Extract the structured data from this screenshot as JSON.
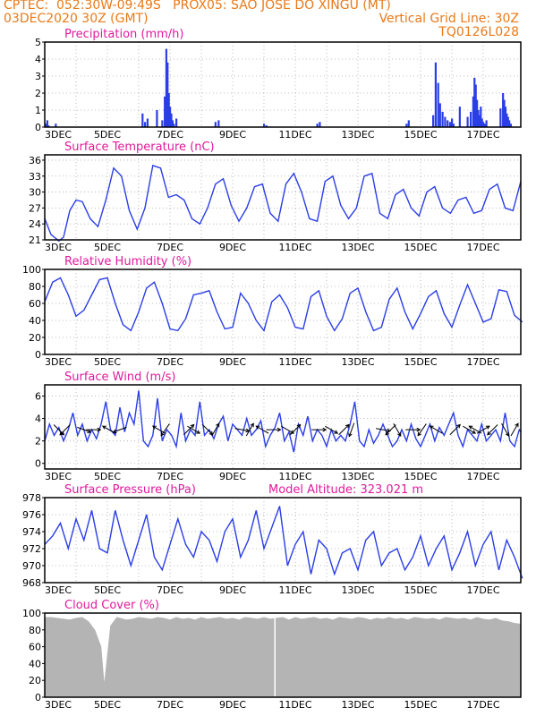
{
  "header": {
    "line1": "CPTEC:  052:30W-09:49S   PROX05: SAO JOSE DO XINGU (MT)",
    "line2_left": "03DEC2020 30Z (GMT)",
    "line2_right": "Vertical Grid Line: 30Z",
    "line3_right": "TQ0126L028",
    "model_altitude": "Model Altitude: 323.021 m"
  },
  "colors": {
    "header": "#e87a1a",
    "panel_title": "#e01a9c",
    "series_line": "#2b3ee6",
    "bar": "#2b3ee6",
    "cloud": "#b4b4b4",
    "grid": "#aaaaaa",
    "wind_arrow": "#000000"
  },
  "date_labels": [
    "3DEC",
    "5DEC",
    "7DEC",
    "9DEC",
    "11DEC",
    "13DEC",
    "15DEC",
    "17DEC"
  ],
  "chart_data": [
    {
      "id": "precipitation",
      "type": "bar",
      "title": "Precipitation (mm/h)",
      "x_unit": "days since 3DEC",
      "ylim": [
        0,
        5
      ],
      "yticks": [
        "0",
        "1",
        "2",
        "3",
        "4",
        "5"
      ],
      "grid": true,
      "x": [
        0.04,
        0.08,
        0.12,
        0.35,
        3.12,
        3.2,
        3.28,
        3.58,
        3.75,
        3.83,
        3.88,
        3.92,
        3.96,
        4.0,
        4.04,
        4.08,
        4.12,
        4.2,
        5.45,
        5.55,
        7.0,
        7.08,
        8.7,
        8.78,
        11.55,
        11.62,
        12.4,
        12.48,
        12.56,
        12.62,
        12.7,
        12.78,
        12.86,
        12.94,
        13.0,
        13.05,
        13.25,
        13.5,
        13.6,
        13.68,
        13.72,
        13.76,
        13.8,
        13.84,
        13.88,
        13.92,
        13.96,
        14.0,
        14.04,
        14.1,
        14.55,
        14.63,
        14.67,
        14.71,
        14.75,
        14.79,
        14.83,
        14.88
      ],
      "values": [
        0.2,
        0.4,
        0.1,
        0.2,
        0.8,
        0.3,
        0.5,
        1.0,
        0.4,
        1.8,
        4.6,
        3.8,
        2.0,
        1.2,
        0.8,
        0.4,
        0.2,
        0.5,
        0.3,
        0.4,
        0.2,
        0.1,
        0.2,
        0.3,
        0.2,
        0.4,
        0.7,
        3.8,
        2.6,
        1.4,
        0.9,
        0.6,
        0.4,
        0.3,
        0.5,
        0.2,
        1.2,
        0.6,
        0.9,
        1.8,
        2.9,
        2.5,
        1.6,
        1.0,
        0.7,
        1.2,
        0.5,
        0.3,
        0.2,
        0.4,
        1.1,
        2.0,
        1.6,
        1.2,
        0.8,
        0.6,
        0.4,
        0.2
      ]
    },
    {
      "id": "temperature",
      "type": "line",
      "title": "Surface Temperature (nC)",
      "x_unit": "days since 3DEC",
      "ylim": [
        21,
        37
      ],
      "yticks": [
        "21",
        "24",
        "27",
        "30",
        "33",
        "36"
      ],
      "grid": true,
      "x": [
        0,
        0.2,
        0.45,
        0.6,
        0.8,
        1.0,
        1.2,
        1.45,
        1.7,
        1.95,
        2.2,
        2.45,
        2.7,
        2.95,
        3.2,
        3.45,
        3.7,
        3.95,
        4.2,
        4.45,
        4.7,
        4.95,
        5.2,
        5.45,
        5.7,
        5.95,
        6.2,
        6.45,
        6.7,
        6.95,
        7.2,
        7.45,
        7.7,
        7.95,
        8.2,
        8.45,
        8.7,
        8.95,
        9.2,
        9.45,
        9.7,
        9.95,
        10.2,
        10.45,
        10.7,
        10.95,
        11.2,
        11.45,
        11.7,
        11.95,
        12.2,
        12.45,
        12.7,
        12.95,
        13.2,
        13.45,
        13.7,
        13.95,
        14.2,
        14.45,
        14.7,
        14.95,
        15.2
      ],
      "values": [
        25.0,
        22.0,
        20.8,
        21.5,
        26.5,
        28.5,
        28.2,
        25.0,
        23.5,
        28.5,
        34.5,
        33.0,
        26.5,
        23.0,
        27.0,
        35.0,
        34.5,
        29.0,
        29.5,
        28.5,
        25.0,
        24.0,
        27.0,
        31.5,
        32.5,
        27.5,
        24.5,
        27.0,
        31.0,
        31.5,
        26.0,
        24.5,
        31.5,
        33.5,
        30.0,
        25.0,
        24.5,
        32.0,
        33.0,
        27.5,
        25.0,
        27.0,
        33.0,
        33.5,
        26.0,
        25.0,
        29.5,
        30.5,
        27.0,
        25.5,
        30.0,
        31.0,
        27.0,
        26.0,
        28.5,
        29.0,
        26.0,
        26.5,
        30.5,
        31.5,
        27.0,
        26.5,
        32.0
      ]
    },
    {
      "id": "humidity",
      "type": "line",
      "title": "Relative Humidity (%)",
      "x_unit": "days since 3DEC",
      "ylim": [
        0,
        100
      ],
      "yticks": [
        "0",
        "20",
        "40",
        "60",
        "80",
        "100"
      ],
      "grid": true,
      "x": [
        0,
        0.25,
        0.5,
        0.75,
        1.0,
        1.25,
        1.5,
        1.75,
        2.0,
        2.25,
        2.5,
        2.75,
        3.0,
        3.25,
        3.5,
        3.75,
        4.0,
        4.25,
        4.5,
        4.75,
        5.0,
        5.25,
        5.5,
        5.75,
        6.0,
        6.25,
        6.5,
        6.75,
        7.0,
        7.25,
        7.5,
        7.75,
        8.0,
        8.25,
        8.5,
        8.75,
        9.0,
        9.25,
        9.5,
        9.75,
        10.0,
        10.25,
        10.5,
        10.75,
        11.0,
        11.25,
        11.5,
        11.75,
        12.0,
        12.25,
        12.5,
        12.75,
        13.0,
        13.25,
        13.5,
        13.75,
        14.0,
        14.25,
        14.5,
        14.75,
        15.0,
        15.25
      ],
      "values": [
        62,
        85,
        90,
        70,
        45,
        52,
        70,
        88,
        90,
        60,
        35,
        28,
        50,
        78,
        85,
        60,
        30,
        28,
        42,
        70,
        72,
        75,
        50,
        30,
        32,
        72,
        60,
        40,
        28,
        62,
        70,
        55,
        32,
        30,
        68,
        75,
        45,
        28,
        42,
        72,
        78,
        50,
        28,
        32,
        65,
        78,
        50,
        30,
        48,
        68,
        75,
        48,
        32,
        58,
        82,
        60,
        38,
        42,
        76,
        74,
        46,
        38
      ]
    },
    {
      "id": "wind",
      "type": "line",
      "title": "Surface Wind (m/s)",
      "x_unit": "days since 3DEC",
      "ylim": [
        -0.5,
        7
      ],
      "yticks": [
        "0",
        "2",
        "4",
        "6"
      ],
      "grid": true,
      "x": [
        0,
        0.15,
        0.3,
        0.45,
        0.6,
        0.75,
        0.9,
        1.05,
        1.2,
        1.35,
        1.5,
        1.65,
        1.8,
        1.95,
        2.1,
        2.25,
        2.4,
        2.55,
        2.7,
        2.85,
        3.0,
        3.15,
        3.3,
        3.45,
        3.6,
        3.75,
        3.9,
        4.05,
        4.2,
        4.35,
        4.5,
        4.65,
        4.8,
        4.95,
        5.1,
        5.25,
        5.4,
        5.55,
        5.7,
        5.85,
        6.0,
        6.15,
        6.3,
        6.45,
        6.6,
        6.75,
        6.9,
        7.05,
        7.2,
        7.35,
        7.5,
        7.65,
        7.8,
        7.95,
        8.1,
        8.25,
        8.4,
        8.55,
        8.7,
        8.85,
        9.0,
        9.15,
        9.3,
        9.45,
        9.6,
        9.75,
        9.9,
        10.05,
        10.2,
        10.35,
        10.5,
        10.65,
        10.8,
        10.95,
        11.1,
        11.25,
        11.4,
        11.55,
        11.7,
        11.85,
        12.0,
        12.15,
        12.3,
        12.45,
        12.6,
        12.75,
        12.9,
        13.05,
        13.2,
        13.35,
        13.5,
        13.65,
        13.8,
        13.95,
        14.1,
        14.25,
        14.4,
        14.55,
        14.7,
        14.85,
        15.0,
        15.15,
        15.2
      ],
      "values": [
        2.0,
        3.5,
        2.5,
        3.2,
        2.0,
        3.0,
        4.5,
        2.5,
        3.5,
        2.0,
        3.0,
        2.2,
        3.5,
        5.5,
        3.0,
        2.5,
        5.0,
        2.8,
        4.5,
        3.5,
        6.5,
        2.0,
        1.5,
        2.5,
        5.8,
        2.0,
        3.0,
        2.5,
        1.5,
        4.5,
        2.0,
        3.0,
        2.5,
        5.5,
        2.5,
        3.0,
        2.2,
        3.5,
        4.2,
        2.0,
        3.5,
        3.0,
        2.5,
        4.0,
        2.5,
        3.0,
        3.8,
        1.5,
        2.5,
        3.2,
        4.5,
        2.0,
        2.8,
        1.0,
        3.5,
        2.5,
        4.2,
        2.0,
        3.0,
        2.5,
        1.5,
        3.0,
        2.0,
        2.5,
        2.0,
        3.5,
        5.5,
        2.0,
        1.5,
        3.0,
        1.8,
        2.5,
        3.5,
        2.5,
        1.5,
        2.0,
        3.0,
        2.0,
        3.5,
        2.2,
        1.5,
        2.5,
        3.5,
        2.0,
        3.2,
        2.5,
        3.5,
        4.5,
        2.5,
        1.5,
        3.0,
        2.5,
        2.0,
        3.5,
        2.0,
        2.5,
        3.0,
        2.0,
        4.5,
        2.0,
        1.5,
        3.0,
        2.8
      ]
    },
    {
      "id": "pressure",
      "type": "line",
      "title": "Surface Pressure (hPa)",
      "x_unit": "days since 3DEC",
      "ylim": [
        968,
        978
      ],
      "yticks": [
        "968",
        "970",
        "972",
        "974",
        "976",
        "978"
      ],
      "grid": true,
      "x": [
        0,
        0.25,
        0.5,
        0.75,
        1.0,
        1.25,
        1.5,
        1.75,
        2.0,
        2.25,
        2.5,
        2.75,
        3.0,
        3.25,
        3.5,
        3.75,
        4.0,
        4.25,
        4.5,
        4.75,
        5.0,
        5.25,
        5.5,
        5.75,
        6.0,
        6.25,
        6.5,
        6.75,
        7.0,
        7.25,
        7.5,
        7.75,
        8.0,
        8.25,
        8.5,
        8.75,
        9.0,
        9.25,
        9.5,
        9.75,
        10.0,
        10.25,
        10.5,
        10.75,
        11.0,
        11.25,
        11.5,
        11.75,
        12.0,
        12.25,
        12.5,
        12.75,
        13.0,
        13.25,
        13.5,
        13.75,
        14.0,
        14.25,
        14.5,
        14.75,
        15.0,
        15.25
      ],
      "values": [
        972.5,
        973.5,
        975.0,
        972.0,
        975.5,
        973.0,
        976.5,
        972.0,
        971.5,
        976.5,
        973.0,
        970.0,
        973.0,
        976.0,
        971.0,
        969.5,
        972.5,
        975.5,
        972.5,
        971.0,
        974.0,
        973.0,
        970.5,
        974.0,
        975.5,
        971.0,
        973.0,
        976.5,
        972.0,
        974.5,
        977.0,
        970.0,
        972.5,
        974.0,
        969.0,
        973.0,
        972.0,
        969.0,
        971.5,
        972.0,
        969.5,
        973.0,
        974.0,
        970.0,
        971.5,
        972.0,
        969.5,
        971.0,
        973.5,
        970.0,
        972.0,
        973.5,
        969.5,
        971.5,
        974.0,
        970.0,
        972.5,
        974.0,
        969.5,
        973.0,
        971.0,
        968.5
      ]
    },
    {
      "id": "cloud",
      "type": "area",
      "title": "Cloud Cover (%)",
      "x_unit": "days since 3DEC",
      "ylim": [
        0,
        100
      ],
      "yticks": [
        "0",
        "20",
        "40",
        "60",
        "80",
        "100"
      ],
      "grid": false,
      "x": [
        0,
        0.2,
        0.4,
        0.6,
        0.8,
        1.0,
        1.2,
        1.4,
        1.6,
        1.8,
        1.9,
        2.0,
        2.1,
        2.2,
        2.3,
        2.4,
        2.6,
        2.8,
        3.0,
        3.2,
        3.4,
        3.6,
        3.8,
        4.0,
        4.2,
        4.4,
        4.6,
        4.8,
        5.0,
        5.2,
        5.4,
        5.6,
        5.8,
        6.0,
        6.2,
        6.4,
        6.6,
        6.8,
        7.0,
        7.2,
        7.4,
        7.6,
        7.8,
        8.0,
        8.2,
        8.4,
        8.6,
        8.8,
        9.0,
        9.2,
        9.4,
        9.6,
        9.8,
        10.0,
        10.2,
        10.4,
        10.6,
        10.8,
        11.0,
        11.2,
        11.4,
        11.6,
        11.8,
        12.0,
        12.2,
        12.4,
        12.6,
        12.8,
        13.0,
        13.2,
        13.4,
        13.6,
        13.8,
        14.0,
        14.2,
        14.4,
        14.6,
        14.8,
        15.0,
        15.2
      ],
      "values": [
        95,
        95,
        94,
        93,
        92,
        94,
        95,
        90,
        80,
        60,
        15,
        50,
        85,
        90,
        95,
        94,
        92,
        93,
        95,
        94,
        93,
        95,
        94,
        92,
        95,
        93,
        94,
        92,
        95,
        93,
        94,
        95,
        93,
        94,
        92,
        95,
        94,
        93,
        95,
        93,
        94,
        95,
        92,
        95,
        93,
        94,
        95,
        93,
        94,
        92,
        95,
        94,
        93,
        95,
        94,
        92,
        94,
        93,
        95,
        93,
        94,
        92,
        95,
        94,
        93,
        94,
        92,
        95,
        94,
        93,
        94,
        92,
        95,
        93,
        92,
        94,
        91,
        90,
        88,
        87
      ]
    },
    {
      "id": "wind_arrows",
      "type": "scatter",
      "x_unit": "days since 3DEC",
      "x": [
        0.45,
        0.65,
        1.25,
        1.55,
        2.05,
        2.4,
        3.65,
        3.85,
        4.6,
        4.75,
        5.2,
        5.45,
        6.3,
        6.55,
        6.95,
        7.3,
        7.75,
        8.0,
        8.75,
        9.15,
        9.55,
        9.8,
        10.8,
        11.05,
        11.25,
        11.75,
        12.05,
        12.5,
        13.1,
        13.55,
        13.75,
        14.0,
        14.3,
        14.7,
        15.0
      ],
      "direction_deg": [
        135,
        225,
        110,
        90,
        300,
        250,
        300,
        215,
        45,
        120,
        135,
        30,
        100,
        30,
        300,
        90,
        120,
        45,
        90,
        120,
        45,
        200,
        100,
        225,
        150,
        90,
        215,
        300,
        45,
        120,
        300,
        60,
        225,
        150,
        30
      ]
    }
  ]
}
